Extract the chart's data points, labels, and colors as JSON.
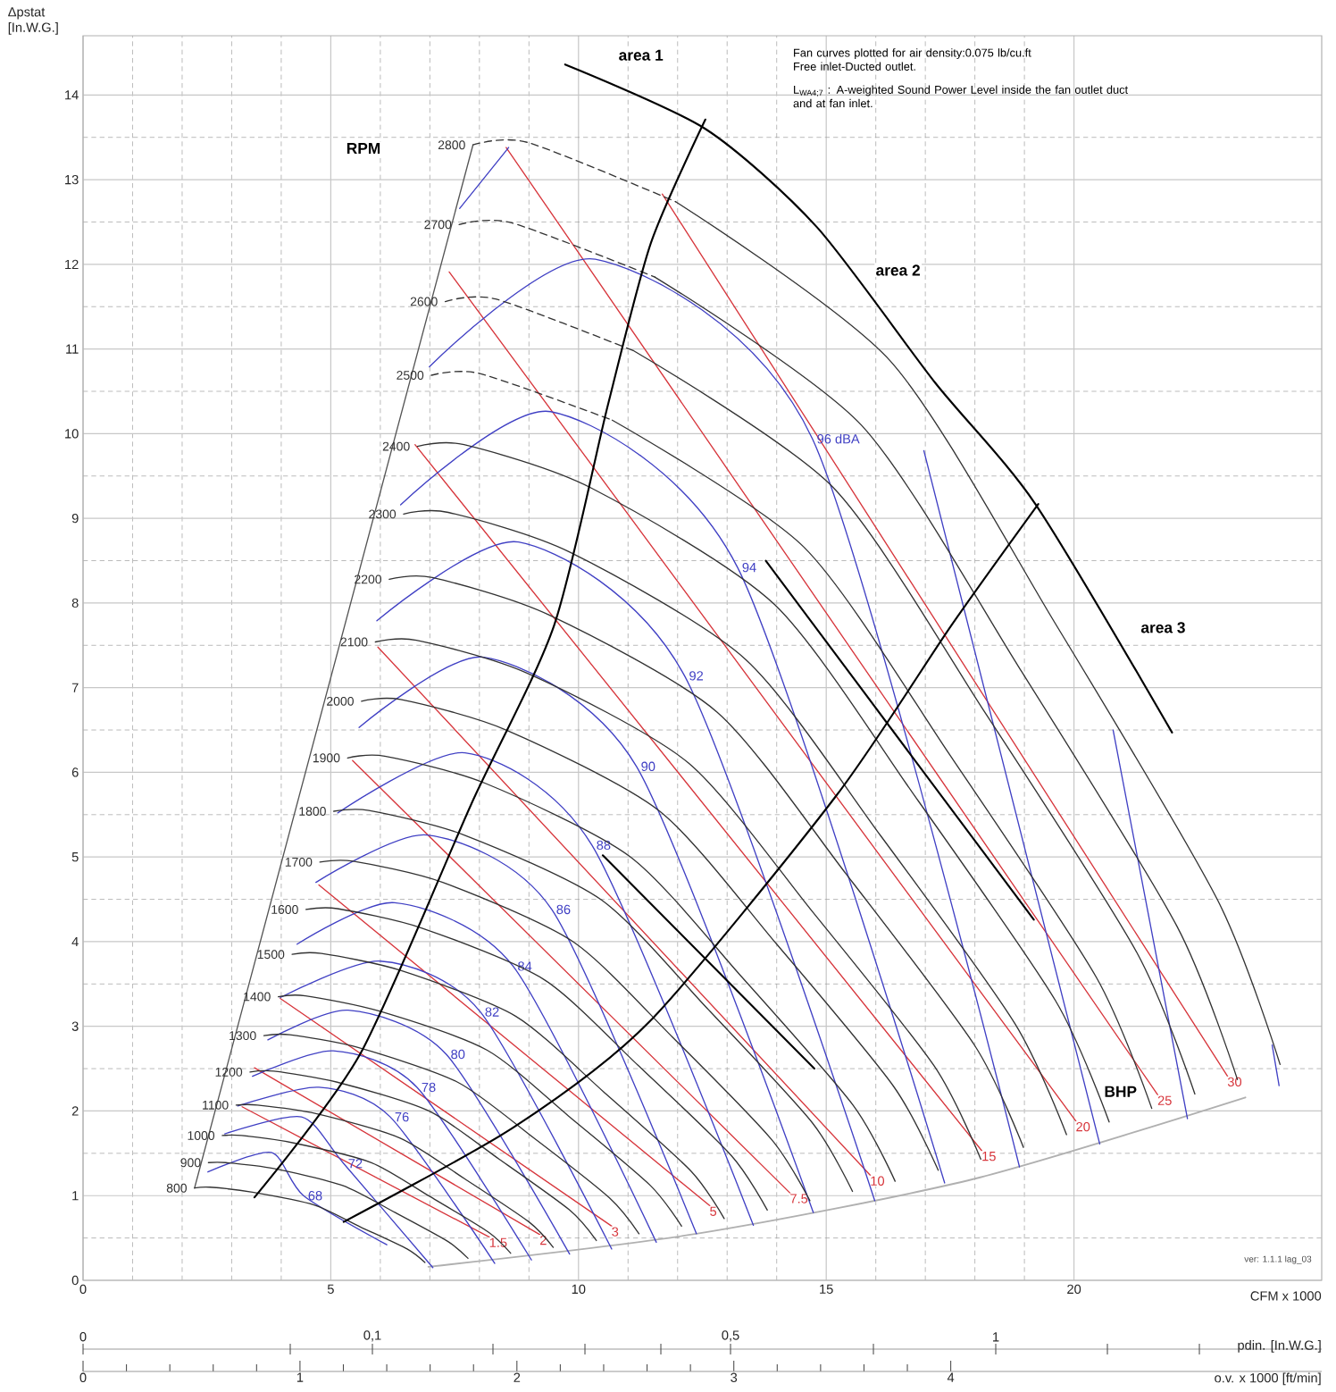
{
  "chart_data": {
    "type": "line",
    "xlabel": "CFM x 1000",
    "ylabel": "Δpstat [In.W.G.]",
    "xlim": [
      0,
      25
    ],
    "ylim": [
      0,
      14.7
    ],
    "xticks": [
      0,
      5,
      10,
      15,
      20
    ],
    "yticks": [
      0,
      1,
      2,
      3,
      4,
      5,
      6,
      7,
      8,
      9,
      10,
      11,
      12,
      13,
      14
    ],
    "grid": true,
    "x2label": "o.v. x 1000 [ft/min]",
    "x2lim": [
      0,
      5.71
    ],
    "x2ticks": [
      0,
      1,
      2,
      3,
      4
    ],
    "annotations": [
      "Fan curves plotted for air density:0.075 lb/cu.ft",
      "Free inlet-Ducted outlet.",
      "L$_{WA4;7}$ : A-weighted Sound Power Level inside the fan outlet duct and at fan inlet.",
      "ver: 1.1.1 lag_03",
      "area 1",
      "area 2",
      "area 3",
      "pdin. [In.W.G.]",
      "0",
      "0,1",
      "0,5",
      "1",
      {
        "text": "RPM",
        "x": 5.66,
        "y": 13.37
      },
      {
        "text": "BHP",
        "x": 20.94,
        "y": 2.23
      }
    ],
    "series": [
      {
        "color": "#b0b0b0",
        "x": [
          6.97,
          12.38,
          18.0,
          23.46
        ],
        "values": [
          0.16,
          0.55,
          1.2,
          2.16
        ]
      },
      {
        "color": "#555555",
        "x": [
          2.25,
          7.87
        ],
        "values": [
          1.09,
          13.41
        ]
      },
      {
        "name": "1.5",
        "color": "#d7363c",
        "x": [
          3.21,
          8.2
        ],
        "values": [
          2.05,
          0.51
        ]
      },
      {
        "name": "2",
        "color": "#d7363c",
        "x": [
          3.46,
          9.22
        ],
        "values": [
          2.51,
          0.54
        ]
      },
      {
        "name": "3",
        "color": "#d7363c",
        "x": [
          3.98,
          10.67
        ],
        "values": [
          3.33,
          0.64
        ]
      },
      {
        "name": "5",
        "color": "#d7363c",
        "x": [
          4.76,
          12.65
        ],
        "values": [
          4.67,
          0.88
        ]
      },
      {
        "name": "7.5",
        "color": "#d7363c",
        "x": [
          5.44,
          14.27
        ],
        "values": [
          6.14,
          1.03
        ]
      },
      {
        "name": "10",
        "color": "#d7363c",
        "x": [
          5.95,
          15.89
        ],
        "values": [
          7.48,
          1.24
        ]
      },
      {
        "name": "15",
        "color": "#d7363c",
        "x": [
          6.7,
          18.14
        ],
        "values": [
          9.87,
          1.53
        ]
      },
      {
        "name": "20",
        "color": "#d7363c",
        "x": [
          7.39,
          20.04
        ],
        "values": [
          11.91,
          1.88
        ]
      },
      {
        "name": "25",
        "color": "#d7363c",
        "x": [
          8.54,
          21.69
        ],
        "values": [
          13.38,
          2.19
        ]
      },
      {
        "name": "30",
        "color": "#d7363c",
        "x": [
          11.69,
          23.1
        ],
        "values": [
          12.83,
          2.41
        ]
      },
      {
        "name": "68",
        "color": "#4040c4",
        "x": [
          2.52,
          3.8,
          4.45,
          6.13
        ],
        "values": [
          1.28,
          1.51,
          1.0,
          0.42
        ]
      },
      {
        "name": "72",
        "color": "#4040c4",
        "x": [
          2.86,
          4.41,
          5.26,
          7.06
        ],
        "values": [
          1.73,
          1.93,
          1.38,
          0.15
        ]
      },
      {
        "name": "76",
        "color": "#4040c4",
        "x": [
          3.12,
          4.76,
          6.2,
          8.31
        ],
        "values": [
          2.06,
          2.28,
          1.93,
          0.2
        ]
      },
      {
        "name": "78",
        "color": "#4040c4",
        "x": [
          3.42,
          5.05,
          6.74,
          9.05
        ],
        "values": [
          2.41,
          2.71,
          2.28,
          0.24
        ]
      },
      {
        "name": "80",
        "color": "#4040c4",
        "x": [
          3.73,
          5.35,
          7.33,
          9.82
        ],
        "values": [
          2.84,
          3.19,
          2.67,
          0.31
        ]
      },
      {
        "name": "82",
        "color": "#4040c4",
        "x": [
          3.98,
          6.0,
          8.02,
          10.67
        ],
        "values": [
          3.34,
          3.77,
          3.17,
          0.37
        ]
      },
      {
        "name": "84",
        "color": "#4040c4",
        "x": [
          4.32,
          6.29,
          8.68,
          11.57
        ],
        "values": [
          3.97,
          4.46,
          3.71,
          0.45
        ]
      },
      {
        "name": "86",
        "color": "#4040c4",
        "x": [
          4.7,
          6.94,
          9.46,
          12.38
        ],
        "values": [
          4.7,
          5.26,
          4.38,
          0.55
        ]
      },
      {
        "name": "88",
        "color": "#4040c4",
        "x": [
          5.14,
          7.71,
          10.27,
          13.53
        ],
        "values": [
          5.52,
          6.23,
          5.14,
          0.65
        ]
      },
      {
        "name": "90",
        "color": "#4040c4",
        "x": [
          5.57,
          8.09,
          11.17,
          14.74
        ],
        "values": [
          6.53,
          7.36,
          6.07,
          0.8
        ]
      },
      {
        "name": "92",
        "color": "#4040c4",
        "x": [
          5.93,
          8.79,
          12.14,
          15.98
        ],
        "values": [
          7.79,
          8.72,
          7.14,
          0.94
        ]
      },
      {
        "name": "94",
        "color": "#4040c4",
        "x": [
          6.41,
          9.44,
          13.21,
          17.39
        ],
        "values": [
          9.16,
          10.26,
          8.42,
          1.15
        ]
      },
      {
        "name": "96 dBA",
        "color": "#4040c4",
        "x": [
          6.99,
          10.34,
          14.72,
          18.9
        ],
        "values": [
          10.79,
          12.06,
          9.94,
          1.34
        ]
      },
      {
        "color": "#4040c4",
        "x": [
          7.6,
          8.59
        ],
        "values": [
          12.66,
          13.38
        ]
      },
      {
        "color": "#4040c4",
        "x": [
          16.97,
          20.52
        ],
        "values": [
          9.8,
          1.61
        ]
      },
      {
        "color": "#4040c4",
        "x": [
          20.79,
          22.29
        ],
        "values": [
          6.5,
          1.91
        ]
      },
      {
        "color": "#4040c4",
        "x": [
          24.0,
          24.14
        ],
        "values": [
          2.78,
          2.3
        ]
      },
      {
        "name": "800",
        "color": "#333333",
        "x": [
          2.25,
          2.56,
          3.42,
          4.66,
          5.6,
          6.54,
          6.9
        ],
        "values": [
          1.09,
          1.1,
          1.04,
          0.89,
          0.63,
          0.37,
          0.21
        ]
      },
      {
        "name": "900",
        "color": "#333333",
        "x": [
          2.53,
          2.88,
          3.85,
          5.24,
          6.3,
          7.36,
          7.77
        ],
        "values": [
          1.39,
          1.39,
          1.32,
          1.12,
          0.8,
          0.46,
          0.26
        ]
      },
      {
        "name": "1000",
        "color": "#333333",
        "x": [
          2.81,
          3.2,
          4.27,
          5.82,
          7.0,
          8.18,
          8.63
        ],
        "values": [
          1.71,
          1.71,
          1.62,
          1.39,
          0.99,
          0.57,
          0.32
        ]
      },
      {
        "name": "1100",
        "color": "#333333",
        "x": [
          3.09,
          3.52,
          4.7,
          6.4,
          7.7,
          9.0,
          9.49
        ],
        "values": [
          2.07,
          2.07,
          1.97,
          1.68,
          1.2,
          0.69,
          0.39
        ]
      },
      {
        "name": "1200",
        "color": "#333333",
        "x": [
          3.37,
          3.85,
          5.13,
          6.98,
          8.4,
          9.82,
          10.36
        ],
        "values": [
          2.46,
          2.47,
          2.34,
          2.0,
          1.43,
          0.83,
          0.47
        ]
      },
      {
        "name": "1300",
        "color": "#333333",
        "x": [
          3.65,
          4.17,
          5.55,
          7.56,
          9.1,
          10.63,
          11.22
        ],
        "values": [
          2.89,
          2.9,
          2.75,
          2.34,
          1.68,
          0.97,
          0.55
        ]
      },
      {
        "name": "1400",
        "color": "#333333",
        "x": [
          3.94,
          4.49,
          5.98,
          8.15,
          9.8,
          11.45,
          12.08
        ],
        "values": [
          3.35,
          3.36,
          3.18,
          2.72,
          1.94,
          1.12,
          0.64
        ]
      },
      {
        "name": "1500",
        "color": "#333333",
        "x": [
          4.22,
          4.81,
          6.41,
          8.73,
          10.5,
          12.27,
          12.94
        ],
        "values": [
          3.85,
          3.86,
          3.66,
          3.12,
          2.23,
          1.29,
          0.73
        ]
      },
      {
        "name": "1600",
        "color": "#333333",
        "x": [
          4.5,
          5.13,
          6.84,
          9.31,
          11.2,
          13.09,
          13.81
        ],
        "values": [
          4.38,
          4.39,
          4.16,
          3.55,
          2.54,
          1.47,
          0.83
        ]
      },
      {
        "name": "1700",
        "color": "#333333",
        "x": [
          4.78,
          5.45,
          7.26,
          9.89,
          11.9,
          13.9,
          14.67
        ],
        "values": [
          4.94,
          4.95,
          4.7,
          4.0,
          2.87,
          1.66,
          0.94
        ]
      },
      {
        "name": "1800",
        "color": "#333333",
        "x": [
          5.06,
          5.77,
          7.69,
          10.47,
          12.6,
          14.72,
          15.53
        ],
        "values": [
          5.54,
          5.55,
          5.26,
          4.49,
          3.21,
          1.86,
          1.05
        ]
      },
      {
        "name": "1900",
        "color": "#333333",
        "x": [
          5.34,
          6.09,
          8.12,
          11.05,
          13.3,
          15.54,
          16.39
        ],
        "values": [
          6.17,
          6.19,
          5.87,
          5.0,
          3.58,
          2.07,
          1.17
        ]
      },
      {
        "name": "2000",
        "color": "#333333",
        "x": [
          5.62,
          6.41,
          8.54,
          11.64,
          14.0,
          16.36,
          17.26
        ],
        "values": [
          6.84,
          6.86,
          6.5,
          5.54,
          3.97,
          2.29,
          1.3
        ]
      },
      {
        "name": "2100",
        "color": "#333333",
        "x": [
          5.9,
          6.73,
          8.97,
          12.22,
          14.7,
          17.18,
          18.12
        ],
        "values": [
          7.54,
          7.56,
          7.17,
          6.11,
          4.37,
          2.53,
          1.43
        ]
      },
      {
        "name": "2200",
        "color": "#333333",
        "x": [
          6.18,
          7.05,
          9.4,
          12.8,
          15.4,
          18.0,
          18.98
        ],
        "values": [
          8.28,
          8.3,
          7.86,
          6.71,
          4.8,
          2.77,
          1.57
        ]
      },
      {
        "name": "2300",
        "color": "#333333",
        "x": [
          6.47,
          7.37,
          9.83,
          13.38,
          16.1,
          18.81,
          19.85
        ],
        "values": [
          9.05,
          9.07,
          8.6,
          7.33,
          5.25,
          3.03,
          1.72
        ]
      },
      {
        "name": "2400",
        "color": "#333333",
        "x": [
          6.75,
          7.69,
          10.25,
          13.96,
          16.8,
          19.63,
          20.71
        ],
        "values": [
          9.85,
          9.87,
          9.36,
          7.98,
          5.71,
          3.3,
          1.87
        ]
      },
      {
        "name": "2500",
        "color": "#333333",
        "line_style": "dashed",
        "x": [
          7.03,
          8.01,
          10.68
        ],
        "values": [
          10.69,
          10.71,
          10.16
        ]
      },
      {
        "color": "#333333",
        "x": [
          10.68,
          14.55,
          17.5,
          20.45,
          21.57
        ],
        "values": [
          10.16,
          8.66,
          6.2,
          3.58,
          2.03
        ]
      },
      {
        "name": "2600",
        "color": "#333333",
        "line_style": "dashed",
        "x": [
          7.31,
          8.33,
          11.11
        ],
        "values": [
          11.56,
          11.59,
          10.98
        ]
      },
      {
        "color": "#333333",
        "x": [
          11.11,
          15.13,
          18.2,
          21.27,
          22.44
        ],
        "values": [
          10.98,
          9.37,
          6.71,
          3.87,
          2.2
        ]
      },
      {
        "name": "2700",
        "color": "#333333",
        "line_style": "dashed",
        "x": [
          7.59,
          8.65,
          11.54
        ],
        "values": [
          12.47,
          12.49,
          11.85
        ]
      },
      {
        "color": "#333333",
        "x": [
          11.54,
          15.71,
          18.9,
          22.08,
          23.3
        ],
        "values": [
          11.85,
          10.1,
          7.23,
          4.18,
          2.37
        ]
      },
      {
        "name": "2800",
        "color": "#333333",
        "line_style": "dashed",
        "x": [
          7.87,
          8.97,
          11.96
        ],
        "values": [
          13.41,
          13.44,
          12.74
        ]
      },
      {
        "color": "#333333",
        "x": [
          11.96,
          16.29,
          19.6,
          22.9,
          24.16
        ],
        "values": [
          12.74,
          10.86,
          7.78,
          4.49,
          2.55
        ]
      },
      {
        "color": "#000000",
        "x": [
          9.73,
          12.56,
          14.81,
          17.2,
          19.22,
          21.98
        ],
        "values": [
          14.36,
          13.6,
          12.44,
          10.6,
          9.17,
          6.47
        ]
      },
      {
        "color": "#000000",
        "x": [
          3.46,
          5.6,
          7.84,
          9.51,
          10.59,
          11.46,
          12.56
        ],
        "values": [
          0.98,
          2.68,
          5.63,
          7.74,
          10.33,
          12.25,
          13.71
        ]
      },
      {
        "color": "#000000",
        "x": [
          5.26,
          8.7,
          11.44,
          15.21,
          17.53,
          19.28
        ],
        "values": [
          0.69,
          1.81,
          3.06,
          5.73,
          7.74,
          9.17
        ]
      },
      {
        "color": "#000000",
        "x": [
          13.78,
          19.19
        ],
        "values": [
          8.5,
          4.26
        ]
      },
      {
        "color": "#000000",
        "x": [
          10.49,
          14.76
        ],
        "values": [
          5.02,
          2.5
        ]
      }
    ]
  }
}
